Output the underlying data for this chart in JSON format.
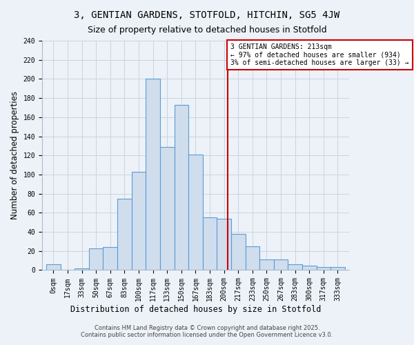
{
  "title": "3, GENTIAN GARDENS, STOTFOLD, HITCHIN, SG5 4JW",
  "subtitle": "Size of property relative to detached houses in Stotfold",
  "xlabel": "Distribution of detached houses by size in Stotfold",
  "ylabel": "Number of detached properties",
  "bar_values": [
    6,
    0,
    2,
    23,
    24,
    75,
    103,
    200,
    129,
    173,
    121,
    55,
    54,
    38,
    25,
    11,
    11,
    6,
    5,
    3,
    3
  ],
  "bar_labels": [
    "0sqm",
    "17sqm",
    "33sqm",
    "50sqm",
    "67sqm",
    "83sqm",
    "100sqm",
    "117sqm",
    "133sqm",
    "150sqm",
    "167sqm",
    "183sqm",
    "200sqm",
    "217sqm",
    "233sqm",
    "250sqm",
    "267sqm",
    "283sqm",
    "300sqm",
    "317sqm",
    "333sqm"
  ],
  "bin_width": 1.0,
  "bar_color": "#cfdded",
  "bar_edge_color": "#5b9bd5",
  "marker_bin": 12,
  "marker_color": "#cc0000",
  "annotation_title": "3 GENTIAN GARDENS: 213sqm",
  "annotation_line1": "← 97% of detached houses are smaller (934)",
  "annotation_line2": "3% of semi-detached houses are larger (33) →",
  "annotation_box_color": "#cc0000",
  "annotation_bg": "#ffffff",
  "footer1": "Contains HM Land Registry data © Crown copyright and database right 2025.",
  "footer2": "Contains public sector information licensed under the Open Government Licence v3.0.",
  "ylim": [
    0,
    240
  ],
  "yticks": [
    0,
    20,
    40,
    60,
    80,
    100,
    120,
    140,
    160,
    180,
    200,
    220,
    240
  ],
  "bg_color": "#edf2f8",
  "plot_bg_color": "#edf2f8",
  "grid_color": "#c8d4e0",
  "title_fontsize": 10,
  "subtitle_fontsize": 9,
  "axis_label_fontsize": 8.5,
  "tick_fontsize": 7,
  "footer_fontsize": 6,
  "annotation_fontsize": 7
}
